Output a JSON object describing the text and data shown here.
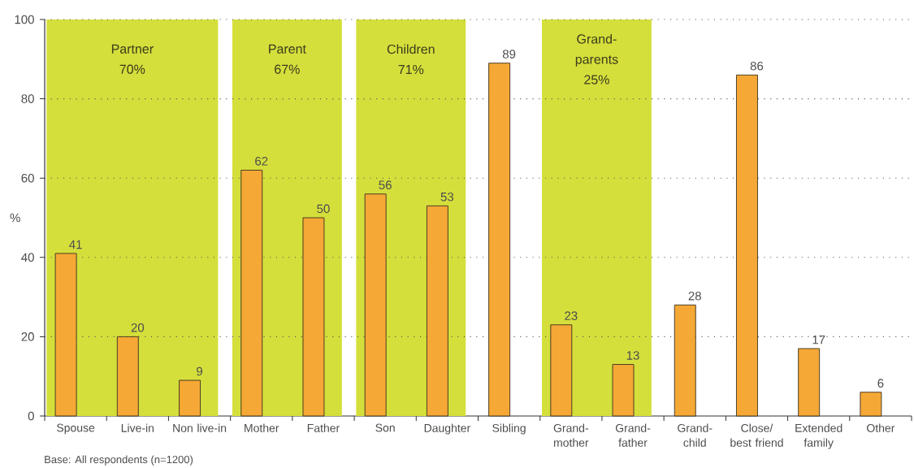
{
  "chart_data": {
    "type": "bar",
    "ylabel": "%",
    "categories": [
      "Spouse",
      "Live-in",
      "Non live-in",
      "Mother",
      "Father",
      "Son",
      "Daughter",
      "Sibling",
      "Grand-mother",
      "Grand-father",
      "Grand-child",
      "Close/ best friend",
      "Extended family",
      "Other"
    ],
    "values": [
      41,
      20,
      9,
      62,
      50,
      56,
      53,
      89,
      23,
      13,
      28,
      86,
      17,
      6
    ],
    "color": "#f5a835",
    "ylim": [
      0,
      100
    ],
    "yticks": [
      0,
      20,
      40,
      60,
      80,
      100
    ],
    "grid": "y",
    "data_labels": true,
    "bands": [
      {
        "axis": "x",
        "from": "Spouse",
        "to": "Non live-in",
        "label": "Partner 70%",
        "color": "#d5df3b"
      },
      {
        "axis": "x",
        "from": "Mother",
        "to": "Father",
        "label": "Parent 67%",
        "color": "#d5df3b"
      },
      {
        "axis": "x",
        "from": "Son",
        "to": "Daughter",
        "label": "Children 71%",
        "color": "#d5df3b"
      },
      {
        "axis": "x",
        "from": "Grand-mother",
        "to": "Grand-father",
        "label": "Grand-parents 25%",
        "color": "#d5df3b"
      }
    ],
    "annotations": [
      "Base: All respondents (n=1200)"
    ]
  }
}
